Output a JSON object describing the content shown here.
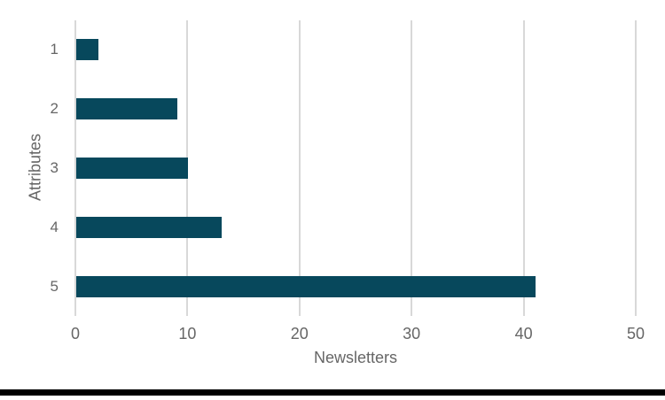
{
  "chart_data": {
    "type": "bar",
    "orientation": "horizontal",
    "title": "",
    "categories": [
      "1",
      "2",
      "3",
      "4",
      "5"
    ],
    "values": [
      2,
      9,
      10,
      13,
      41
    ],
    "xlabel": "Newsletters",
    "ylabel": "Attributes",
    "xlim": [
      0,
      50
    ],
    "xticks": [
      0,
      10,
      20,
      30,
      40,
      50
    ],
    "grid": "vertical-gridlines-on",
    "legend": "none",
    "colors": {
      "bar": "#07485c",
      "gridline": "#d8d8d8",
      "axis_text": "#666666",
      "divider": "#000000",
      "background": "#ffffff"
    }
  }
}
